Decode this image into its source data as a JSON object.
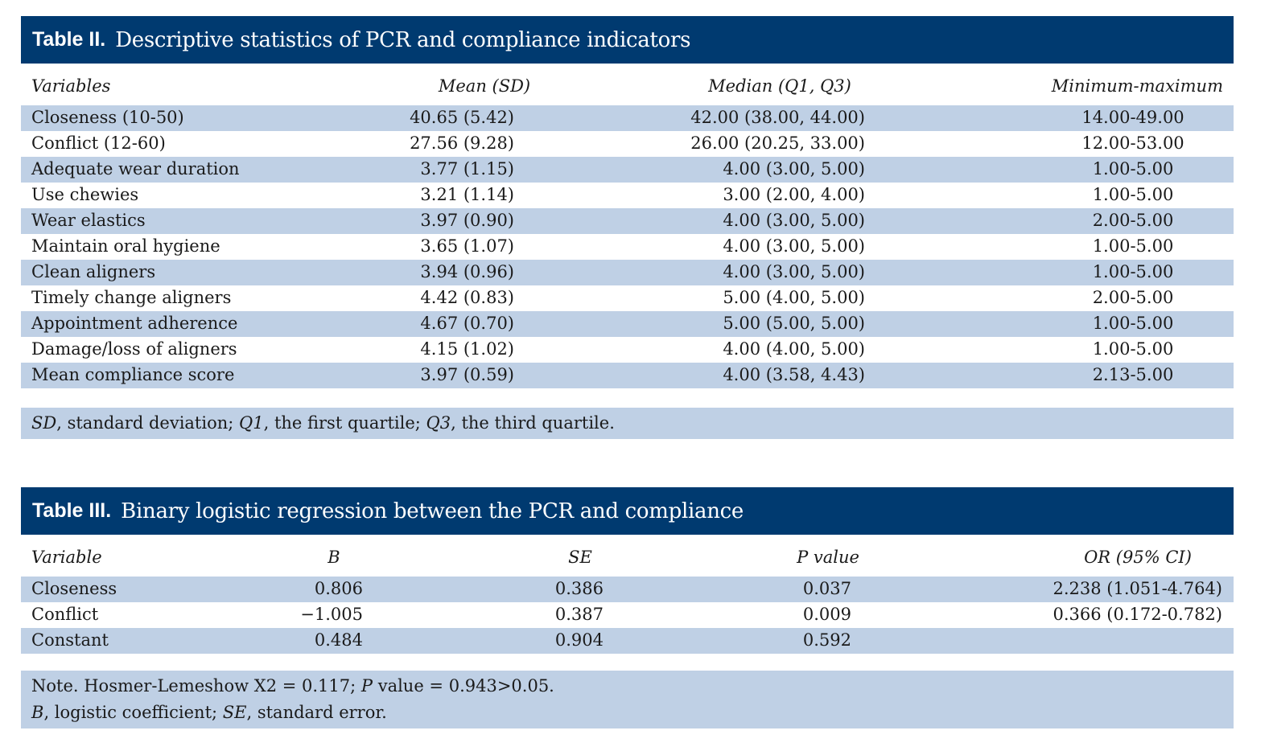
{
  "table2": {
    "label": "Table II.",
    "title": "Descriptive statistics of PCR and compliance indicators",
    "headers": [
      "Variables",
      "Mean (SD)",
      "Median (Q1, Q3)",
      "Minimum-maximum"
    ],
    "rows": [
      {
        "variable": "Closeness (10-50)",
        "mean_sd": "40.65 (5.42)",
        "median_q": "42.00 (38.00, 44.00)",
        "min_max": "14.00-49.00"
      },
      {
        "variable": "Conflict (12-60)",
        "mean_sd": "27.56 (9.28)",
        "median_q": "26.00 (20.25, 33.00)",
        "min_max": "12.00-53.00"
      },
      {
        "variable": "Adequate wear duration",
        "mean_sd": "3.77 (1.15)",
        "median_q": "4.00 (3.00, 5.00)",
        "min_max": "1.00-5.00"
      },
      {
        "variable": "Use chewies",
        "mean_sd": "3.21 (1.14)",
        "median_q": "3.00 (2.00, 4.00)",
        "min_max": "1.00-5.00"
      },
      {
        "variable": "Wear elastics",
        "mean_sd": "3.97 (0.90)",
        "median_q": "4.00 (3.00, 5.00)",
        "min_max": "2.00-5.00"
      },
      {
        "variable": "Maintain oral hygiene",
        "mean_sd": "3.65 (1.07)",
        "median_q": "4.00 (3.00, 5.00)",
        "min_max": "1.00-5.00"
      },
      {
        "variable": "Clean aligners",
        "mean_sd": "3.94 (0.96)",
        "median_q": "4.00 (3.00, 5.00)",
        "min_max": "1.00-5.00"
      },
      {
        "variable": "Timely change aligners",
        "mean_sd": "4.42 (0.83)",
        "median_q": "5.00 (4.00, 5.00)",
        "min_max": "2.00-5.00"
      },
      {
        "variable": "Appointment adherence",
        "mean_sd": "4.67 (0.70)",
        "median_q": "5.00 (5.00, 5.00)",
        "min_max": "1.00-5.00"
      },
      {
        "variable": "Damage/loss of aligners",
        "mean_sd": "4.15 (1.02)",
        "median_q": "4.00 (4.00, 5.00)",
        "min_max": "1.00-5.00"
      },
      {
        "variable": "Mean compliance score",
        "mean_sd": "3.97 (0.59)",
        "median_q": "4.00 (3.58, 4.43)",
        "min_max": "2.13-5.00"
      }
    ],
    "footnote": {
      "sd_abbr": "SD",
      "sd_def": ", standard deviation; ",
      "q1_abbr": "Q1",
      "q1_def": ", the first quartile; ",
      "q3_abbr": "Q3",
      "q3_def": ", the third quartile."
    }
  },
  "table3": {
    "label": "Table III.",
    "title": "Binary logistic regression between the PCR and compliance",
    "headers": [
      "Variable",
      "B",
      "SE",
      "P value",
      "OR (95% CI)"
    ],
    "rows": [
      {
        "variable": "Closeness",
        "b": "0.806",
        "se": "0.386",
        "p": "0.037",
        "or_ci": "2.238 (1.051-4.764)"
      },
      {
        "variable": "Conflict",
        "b": "−1.005",
        "se": "0.387",
        "p": "0.009",
        "or_ci": "0.366 (0.172-0.782)"
      },
      {
        "variable": "Constant",
        "b": "0.484",
        "se": "0.904",
        "p": "0.592",
        "or_ci": ""
      }
    ],
    "note": {
      "line1_a": "Note. Hosmer-Lemeshow X2 = 0.117; ",
      "line1_p": "P",
      "line1_b": " value = 0.943>0.05.",
      "b_abbr": "B",
      "b_def": ", logistic coefficient; ",
      "se_abbr": "SE",
      "se_def": ", standard error."
    }
  }
}
